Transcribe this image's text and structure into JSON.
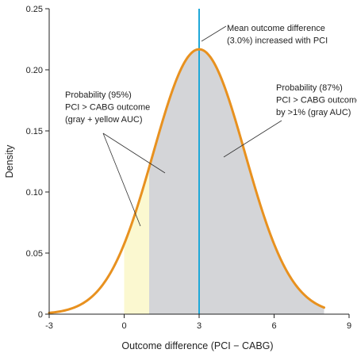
{
  "chart_data": {
    "type": "area",
    "title": "",
    "xlabel": "Outcome difference (PCI − CABG)",
    "ylabel": "Density",
    "xlim": [
      -3,
      9
    ],
    "ylim": [
      0,
      0.25
    ],
    "x_ticks": [
      "-3",
      "0",
      "3",
      "6",
      "9"
    ],
    "y_ticks": [
      "0",
      "0.05",
      "0.10",
      "0.15",
      "0.20",
      "0.25"
    ],
    "grid": false,
    "legend": "none",
    "distribution": {
      "kind": "normal",
      "mean": 3.0,
      "sd": 1.84,
      "x_range": [
        -3,
        8
      ]
    },
    "mean_line_x": 3.0,
    "shaded_regions": [
      {
        "from": 0,
        "to": 1,
        "fill": "#fbf8d0"
      },
      {
        "from": 1,
        "to": 8,
        "fill": "#d4d5d8"
      }
    ],
    "annotations": [
      {
        "lines": [
          "Mean outcome difference",
          "(3.0%) increased with PCI"
        ]
      },
      {
        "lines": [
          "Probability (95%)",
          "PCI > CABG outcome",
          "(gray + yellow AUC)"
        ]
      },
      {
        "lines": [
          "Probability (87%)",
          "PCI > CABG outcome",
          "by >1% (gray AUC)"
        ]
      }
    ],
    "colors": {
      "curve": "#e8911f",
      "mean_line": "#1fa8d8",
      "axis": "#222222"
    }
  }
}
